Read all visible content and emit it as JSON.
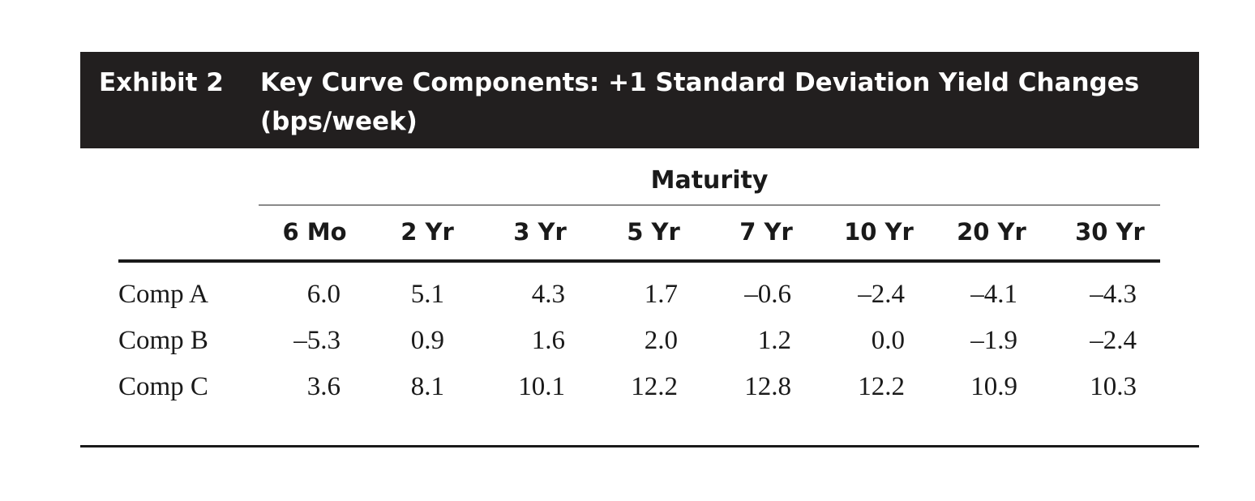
{
  "exhibit": {
    "label": "Exhibit 2",
    "title": "Key Curve Components: +1 Standard Deviation Yield Changes (bps/week)"
  },
  "table": {
    "group_header": "Maturity",
    "columns": [
      "6 Mo",
      "2 Yr",
      "3 Yr",
      "5 Yr",
      "7 Yr",
      "10 Yr",
      "20 Yr",
      "30 Yr"
    ],
    "rows": [
      {
        "label": "Comp A",
        "values": [
          "6.0",
          "5.1",
          "4.3",
          "1.7",
          "–0.6",
          "–2.4",
          "–4.1",
          "–4.3"
        ]
      },
      {
        "label": "Comp B",
        "values": [
          "–5.3",
          "0.9",
          "1.6",
          "2.0",
          "1.2",
          "0.0",
          "–1.9",
          "–2.4"
        ]
      },
      {
        "label": "Comp C",
        "values": [
          "3.6",
          "8.1",
          "10.1",
          "12.2",
          "12.8",
          "12.2",
          "10.9",
          "10.3"
        ]
      }
    ]
  }
}
